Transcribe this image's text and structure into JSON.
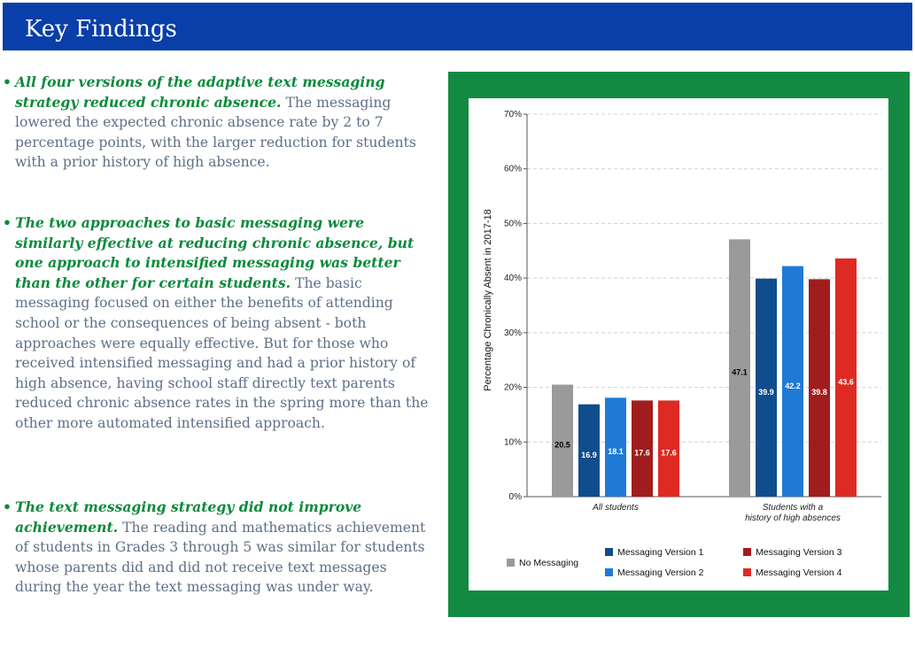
{
  "header": {
    "title": "Key Findings"
  },
  "findings": [
    {
      "lead": "All four versions of the adaptive text messaging strategy reduced chronic absence.",
      "body": "The messaging lowered the expected chronic absence rate by 2 to 7 percentage points, with the larger reduction for students with a prior history of high absence."
    },
    {
      "lead": "The two approaches to basic messaging were similarly effective at reducing chronic absence, but one approach to intensified messaging was better than the other for certain students.",
      "body": "The basic messaging focused on either the benefits of attending school or the consequences of being absent - both approaches were equally effective. But for those who received intensified messaging and had a prior history of high absence, having school staff directly text parents reduced chronic absence rates in the spring more than the other more automated intensified approach."
    },
    {
      "lead": "The text messaging strategy did not improve achievement.",
      "body": "The reading and mathematics achievement of students in Grades 3 through 5 was similar for students whose parents did and did not receive text messages during the year the text messaging was under way."
    }
  ],
  "bullet": "•",
  "chart_data": {
    "type": "bar",
    "ylabel": "Percentage Chronically Absent in 2017-18",
    "ylim": [
      0,
      70
    ],
    "yticks": [
      0,
      10,
      20,
      30,
      40,
      50,
      60,
      70
    ],
    "ytick_labels": [
      "0%",
      "10%",
      "20%",
      "30%",
      "40%",
      "50%",
      "60%",
      "70%"
    ],
    "grid": true,
    "legend_position": "bottom",
    "categories": [
      [
        "All students"
      ],
      [
        "Students with a",
        "history of high absences"
      ]
    ],
    "series": [
      {
        "name": "No Messaging",
        "color": "#9a9a9a",
        "label_color": "#000000",
        "values": [
          20.5,
          47.1
        ]
      },
      {
        "name": "Messaging Version 1",
        "color": "#0f4d8c",
        "label_color": "#ffffff",
        "values": [
          16.9,
          39.9
        ]
      },
      {
        "name": "Messaging Version 2",
        "color": "#1f7ad6",
        "label_color": "#ffffff",
        "values": [
          18.1,
          42.2
        ]
      },
      {
        "name": "Messaging Version 3",
        "color": "#a11d1d",
        "label_color": "#ffffff",
        "values": [
          17.6,
          39.8
        ]
      },
      {
        "name": "Messaging Version 4",
        "color": "#de2a22",
        "label_color": "#ffffff",
        "values": [
          17.6,
          43.6
        ]
      }
    ]
  }
}
